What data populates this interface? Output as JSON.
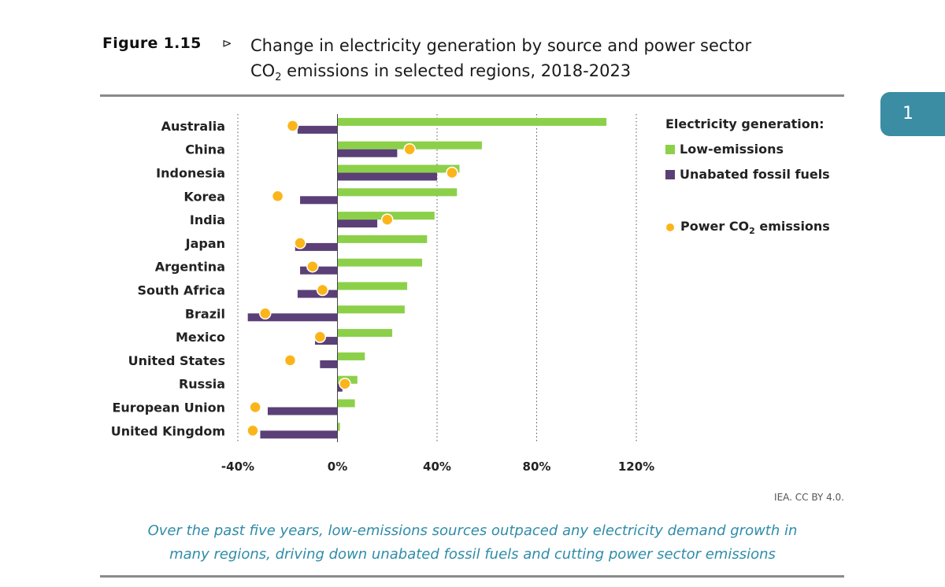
{
  "figure": {
    "label": "Figure 1.15",
    "arrow": "⊳",
    "title_line1": "Change in electricity generation by source and power sector",
    "title_line2_pre": "CO",
    "title_line2_sub": "2",
    "title_line2_post": " emissions in selected regions, 2018-2023"
  },
  "side_tab": {
    "label": "1"
  },
  "legend": {
    "title": "Electricity generation:",
    "items": [
      {
        "label": "Low-emissions",
        "color": "#8cd04a",
        "kind": "bar"
      },
      {
        "label": "Unabated fossil fuels",
        "color": "#5b3f77",
        "kind": "bar"
      },
      {
        "label_pre": "Power CO",
        "label_sub": "2",
        "label_post": " emissions",
        "color": "#fbb51a",
        "kind": "dot"
      }
    ]
  },
  "source": "IEA. CC BY 4.0.",
  "caption": {
    "line1": "Over the past five years, low-emissions sources outpaced any electricity demand growth in",
    "line2": "many regions, driving down unabated fossil fuels and cutting power sector emissions"
  },
  "chart_data": {
    "type": "bar",
    "orientation": "horizontal",
    "categories": [
      "Australia",
      "China",
      "Indonesia",
      "Korea",
      "India",
      "Japan",
      "Argentina",
      "South Africa",
      "Brazil",
      "Mexico",
      "United States",
      "Russia",
      "European Union",
      "United Kingdom"
    ],
    "series": [
      {
        "name": "Low-emissions",
        "color": "#8cd04a",
        "values": [
          108,
          58,
          49,
          48,
          39,
          36,
          34,
          28,
          27,
          22,
          11,
          8,
          7,
          1
        ]
      },
      {
        "name": "Unabated fossil fuels",
        "color": "#5b3f77",
        "values": [
          -16,
          24,
          40,
          -15,
          16,
          -17,
          -15,
          -16,
          -36,
          -9,
          -7,
          2,
          -28,
          -31
        ]
      },
      {
        "name": "Power CO2 emissions",
        "color": "#fbb51a",
        "kind": "point",
        "values": [
          -18,
          29,
          46,
          -24,
          20,
          -15,
          -10,
          -6,
          -29,
          -7,
          -19,
          3,
          -33,
          -34
        ]
      }
    ],
    "xlim": [
      -40,
      120
    ],
    "xticks": [
      -40,
      0,
      40,
      80,
      120
    ],
    "xtick_labels": [
      "-40%",
      "0%",
      "40%",
      "80%",
      "120%"
    ],
    "grid": "vertical dotted at ticks",
    "legend_position": "right"
  }
}
